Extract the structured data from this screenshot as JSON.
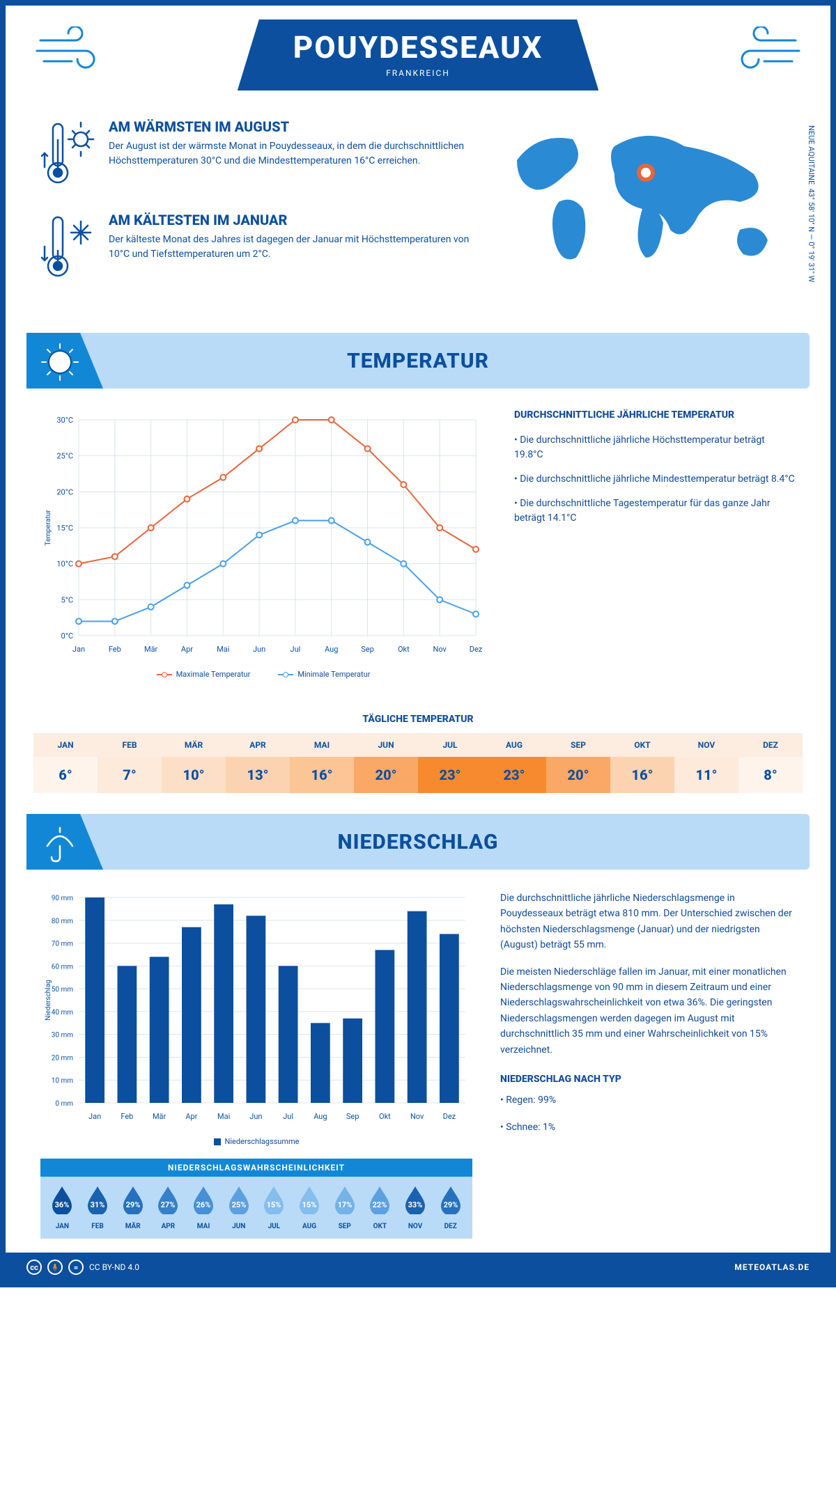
{
  "header": {
    "city": "POUYDESSEAUX",
    "country": "FRANKREICH"
  },
  "coords": {
    "lat": "43° 58' 10'' N — 0° 19' 31'' W",
    "region": "NEUE AQUITAINE"
  },
  "warm": {
    "title": "AM WÄRMSTEN IM AUGUST",
    "text": "Der August ist der wärmste Monat in Pouydesseaux, in dem die durchschnittlichen Höchsttemperaturen 30°C und die Mindesttemperaturen 16°C erreichen."
  },
  "cold": {
    "title": "AM KÄLTESTEN IM JANUAR",
    "text": "Der kälteste Monat des Jahres ist dagegen der Januar mit Höchsttemperaturen von 10°C und Tiefsttemperaturen um 2°C."
  },
  "temp_section_title": "TEMPERATUR",
  "temp_chart": {
    "type": "line",
    "months": [
      "Jan",
      "Feb",
      "Mär",
      "Apr",
      "Mai",
      "Jun",
      "Jul",
      "Aug",
      "Sep",
      "Okt",
      "Nov",
      "Dez"
    ],
    "max_series": [
      10,
      11,
      15,
      19,
      22,
      26,
      30,
      30,
      26,
      21,
      15,
      12
    ],
    "min_series": [
      2,
      2,
      4,
      7,
      10,
      14,
      16,
      16,
      13,
      10,
      5,
      3
    ],
    "max_color": "#e8653a",
    "min_color": "#4aa0e8",
    "ylim": [
      0,
      30
    ],
    "ytick_step": 5,
    "ylabel": "Temperatur",
    "grid_color": "#d8e4f0",
    "line_width": 2,
    "marker_size": 4,
    "legend_max": "Maximale Temperatur",
    "legend_min": "Minimale Temperatur"
  },
  "temp_info": {
    "title": "DURCHSCHNITTLICHE JÄHRLICHE TEMPERATUR",
    "b1": "• Die durchschnittliche jährliche Höchsttemperatur beträgt 19.8°C",
    "b2": "• Die durchschnittliche jährliche Mindesttemperatur beträgt 8.4°C",
    "b3": "• Die durchschnittliche Tagestemperatur für das ganze Jahr beträgt 14.1°C"
  },
  "daily": {
    "title": "TÄGLICHE TEMPERATUR",
    "months": [
      "JAN",
      "FEB",
      "MÄR",
      "APR",
      "MAI",
      "JUN",
      "JUL",
      "AUG",
      "SEP",
      "OKT",
      "NOV",
      "DEZ"
    ],
    "values": [
      "6°",
      "7°",
      "10°",
      "13°",
      "16°",
      "20°",
      "23°",
      "23°",
      "20°",
      "16°",
      "11°",
      "8°"
    ],
    "header_bg": "#fdece0",
    "cell_colors": [
      "#fef4eb",
      "#fdeadb",
      "#fddfc7",
      "#fcd3b0",
      "#fbc596",
      "#faa865",
      "#f78a2e",
      "#f78a2e",
      "#faa865",
      "#fcd3b0",
      "#fdeadb",
      "#fef4eb"
    ],
    "text_color": "#0b4f9e"
  },
  "precip_section_title": "NIEDERSCHLAG",
  "precip_chart": {
    "type": "bar",
    "months": [
      "Jan",
      "Feb",
      "Mär",
      "Apr",
      "Mai",
      "Jun",
      "Jul",
      "Aug",
      "Sep",
      "Okt",
      "Nov",
      "Dez"
    ],
    "values": [
      90,
      60,
      64,
      77,
      87,
      82,
      60,
      35,
      37,
      67,
      84,
      74
    ],
    "bar_color": "#0b4f9e",
    "ylim": [
      0,
      90
    ],
    "ytick_step": 10,
    "ylabel": "Niederschlag",
    "grid_color": "#d8e4f0",
    "legend": "Niederschlagssumme"
  },
  "precip_text": {
    "p1": "Die durchschnittliche jährliche Niederschlagsmenge in Pouydesseaux beträgt etwa 810 mm. Der Unterschied zwischen der höchsten Niederschlagsmenge (Januar) und der niedrigsten (August) beträgt 55 mm.",
    "p2": "Die meisten Niederschläge fallen im Januar, mit einer monatlichen Niederschlagsmenge von 90 mm in diesem Zeitraum und einer Niederschlagswahrscheinlichkeit von etwa 36%. Die geringsten Niederschlagsmengen werden dagegen im August mit durchschnittlich 35 mm und einer Wahrscheinlichkeit von 15% verzeichnet.",
    "type_title": "NIEDERSCHLAG NACH TYP",
    "type1": "• Regen: 99%",
    "type2": "• Schnee: 1%"
  },
  "prob": {
    "title": "NIEDERSCHLAGSWAHRSCHEINLICHKEIT",
    "months": [
      "JAN",
      "FEB",
      "MÄR",
      "APR",
      "MAI",
      "JUN",
      "JUL",
      "AUG",
      "SEP",
      "OKT",
      "NOV",
      "DEZ"
    ],
    "values": [
      "36%",
      "31%",
      "29%",
      "27%",
      "26%",
      "25%",
      "15%",
      "15%",
      "17%",
      "22%",
      "33%",
      "29%"
    ],
    "drop_colors": [
      "#0b4f9e",
      "#1a62b0",
      "#2670bd",
      "#3680c9",
      "#4890d5",
      "#5da0df",
      "#85bdec",
      "#85bdec",
      "#74b2e7",
      "#5da0df",
      "#1a62b0",
      "#2670bd"
    ]
  },
  "footer": {
    "license": "CC BY-ND 4.0",
    "site": "METEOATLAS.DE"
  }
}
